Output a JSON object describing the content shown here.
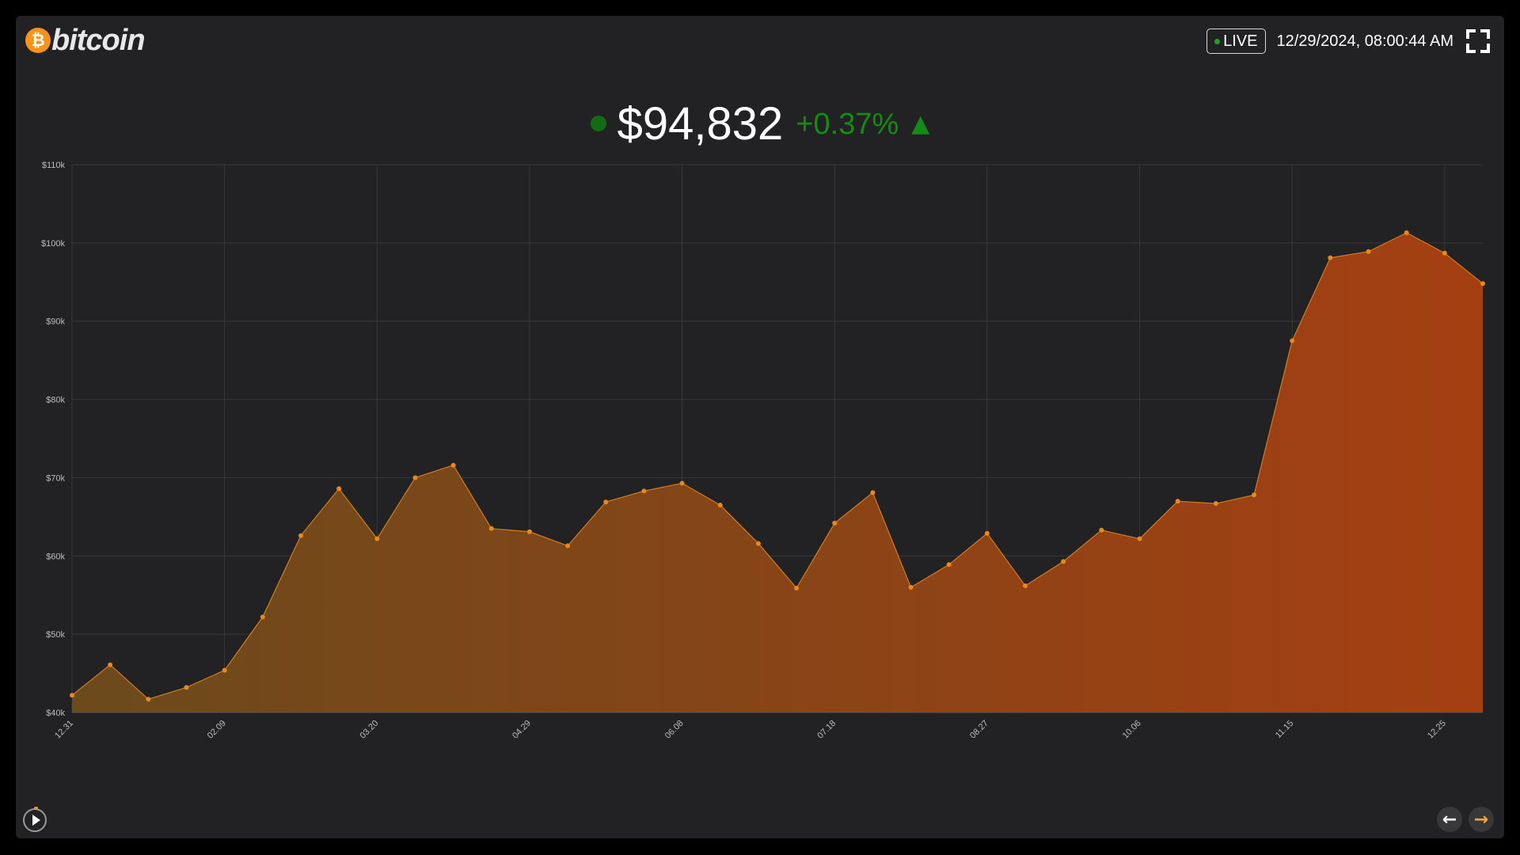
{
  "header": {
    "brand_symbol": "₿",
    "brand_word": "bitcoin",
    "live_label": "LIVE",
    "timestamp": "12/29/2024, 08:00:44 AM"
  },
  "ticker": {
    "price": "$94,832",
    "change": "+0.37%",
    "arrow": "▲"
  },
  "controls": {
    "prev_arrow": "←",
    "next_arrow": "→"
  },
  "colors": {
    "brand_orange": "#f7931a",
    "live_green": "#1ea31e",
    "price_dot": "#136b13",
    "change_green": "#158a15",
    "next_arrow": "#f7a733",
    "area_start": "#6b4a1c",
    "area_end": "#a53f12",
    "line_point": "#e8881d"
  },
  "icons": {
    "brand": "bitcoin-coin-icon",
    "fullscreen": "fullscreen-icon",
    "play": "play-icon",
    "prev": "arrow-left-icon",
    "next": "arrow-right-icon"
  },
  "chart_data": {
    "type": "area",
    "title": "",
    "xlabel": "",
    "ylabel": "",
    "ylim": [
      40000,
      110000
    ],
    "y_ticks": [
      40000,
      50000,
      60000,
      70000,
      80000,
      90000,
      100000,
      110000
    ],
    "y_tick_labels": [
      "$40k",
      "$50k",
      "$60k",
      "$70k",
      "$80k",
      "$90k",
      "$100k",
      "$110k"
    ],
    "x_tick_labels": [
      "12.31",
      "02.09",
      "03.20",
      "04.29",
      "06.08",
      "07.18",
      "08.27",
      "10.06",
      "11.15",
      "12.25"
    ],
    "x_tick_every": 4,
    "grid": true,
    "series": [
      {
        "values": [
          42200,
          46100,
          41700,
          43200,
          45400,
          52200,
          62600,
          68600,
          62200,
          70000,
          71600,
          63500,
          63100,
          61300,
          66900,
          68300,
          69300,
          66500,
          61600,
          55900,
          64200,
          68100,
          56000,
          58900,
          62900,
          56200,
          59300,
          63300,
          62200,
          67000,
          66700,
          67800,
          87500,
          98100,
          98900,
          101300,
          98700,
          94800
        ]
      }
    ]
  }
}
